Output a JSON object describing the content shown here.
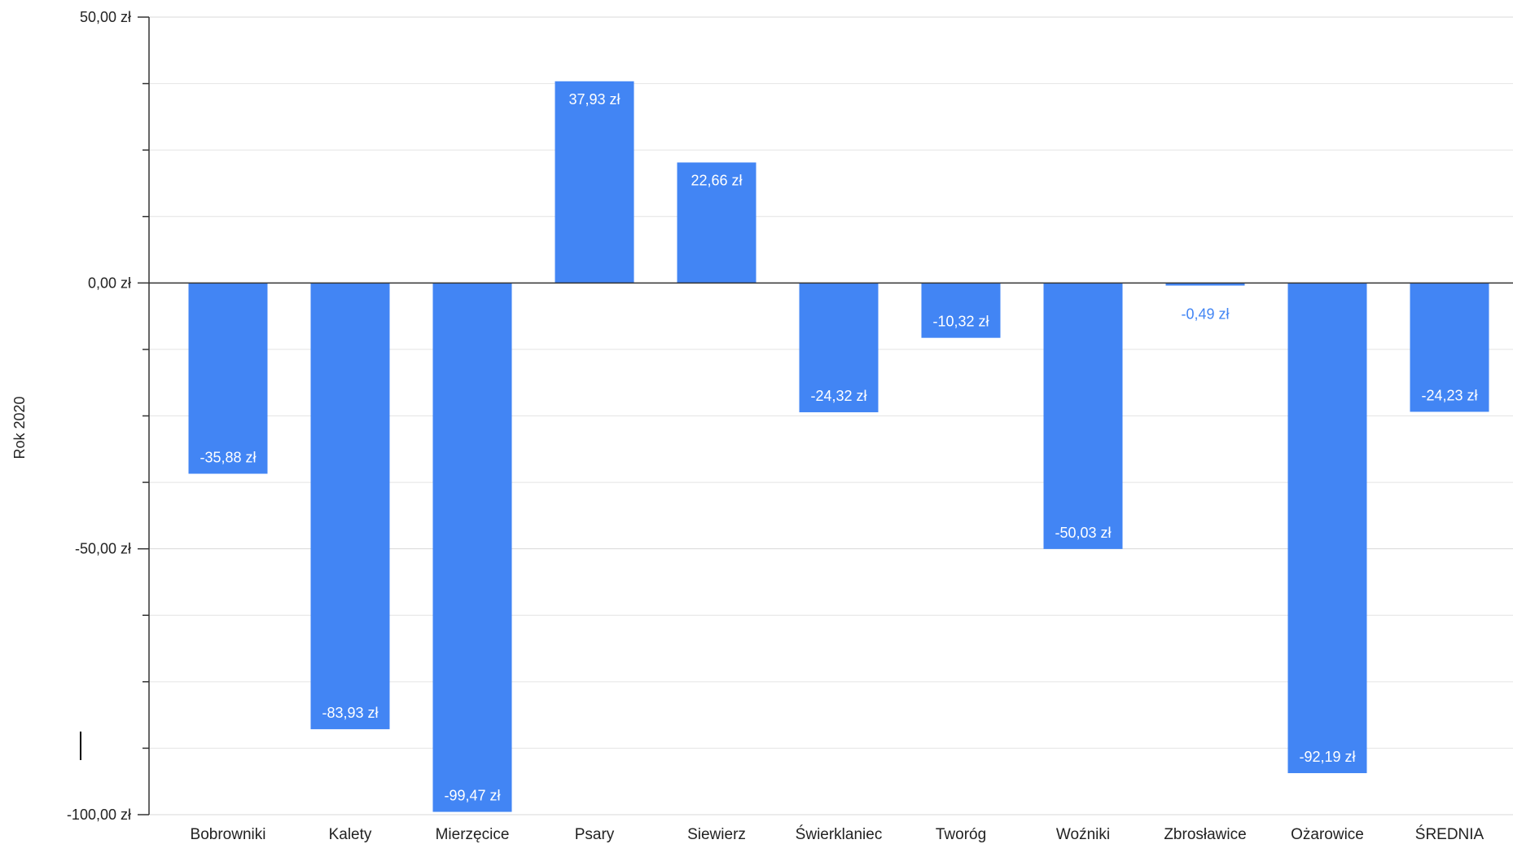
{
  "chart_data": {
    "type": "bar",
    "ylabel": "Rok 2020",
    "xlabel": "",
    "title": "",
    "ylim": [
      -100,
      50
    ],
    "y_ticks": [
      "50,00 zł",
      "0,00 zł",
      "-50,00 zł",
      "-100,00 zł"
    ],
    "y_tick_values": [
      50,
      0,
      -50,
      -100
    ],
    "minor_gridlines": true,
    "legend": "none",
    "bar_color": "#4285F4",
    "label_inside_color": "#FFFFFF",
    "label_outside_color": "#4285F4",
    "categories": [
      "Bobrowniki",
      "Kalety",
      "Mierzęcice",
      "Psary",
      "Siewierz",
      "Świerklaniec",
      "Tworóg",
      "Woźniki",
      "Zbrosławice",
      "Ożarowice",
      "ŚREDNIA"
    ],
    "values": [
      -35.88,
      -83.93,
      -99.47,
      37.93,
      22.66,
      -24.32,
      -10.32,
      -50.03,
      -0.49,
      -92.19,
      -24.23
    ],
    "value_labels": [
      "-35,88 zł",
      "-83,93 zł",
      "-99,47 zł",
      "37,93 zł",
      "22,66 zł",
      "-24,32 zł",
      "-10,32 zł",
      "-50,03 zł",
      "-0,49 zł",
      "-92,19 zł",
      "-24,23 zł"
    ]
  }
}
